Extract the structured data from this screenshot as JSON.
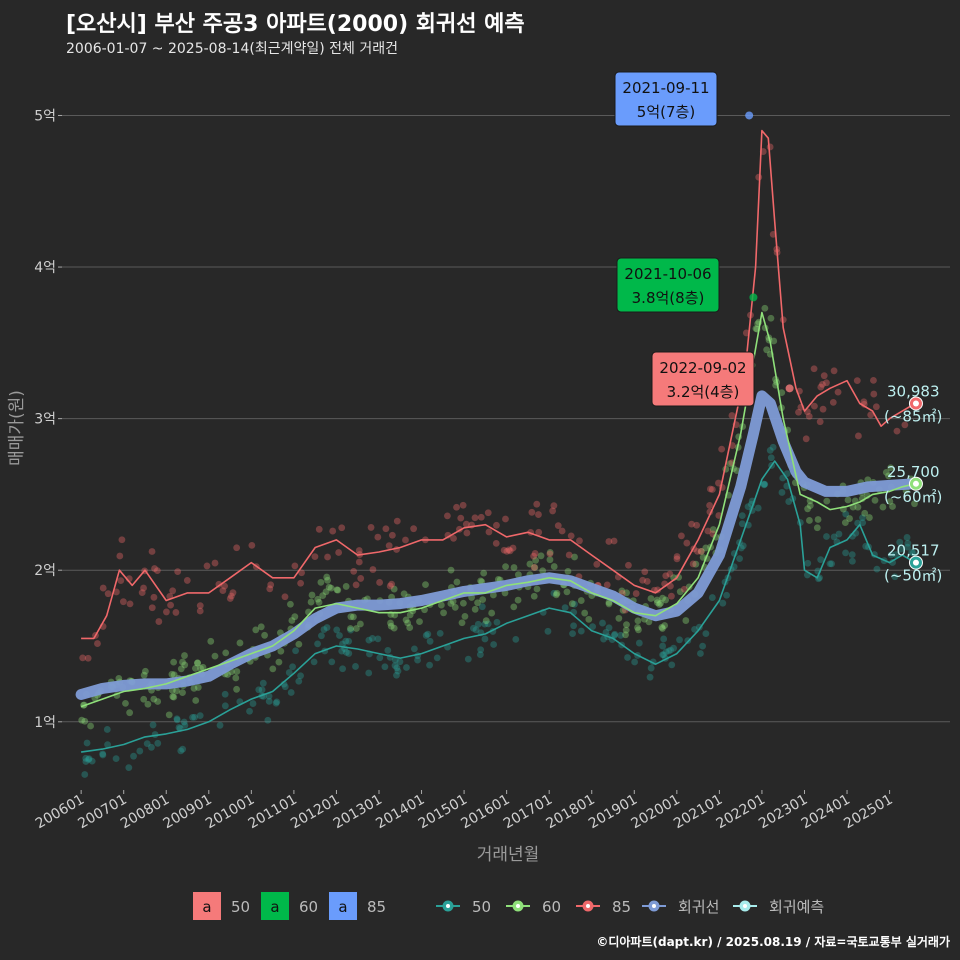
{
  "header": {
    "title": "[오산시] 부산 주공3 아파트(2000) 회귀선 예측",
    "subtitle": "2006-01-07 ~ 2025-08-14(최근계약일) 전체 거래건"
  },
  "credit": "©디아파트(dapt.kr) / 2025.08.19 / 자료=국토교통부 실거래가",
  "chart_data": {
    "type": "line",
    "xlabel": "거래년월",
    "ylabel": "매매가(원)",
    "x_range": [
      2006.0,
      2025.9
    ],
    "ylim": [
      0.55,
      5.3
    ],
    "y_ticks": [
      {
        "v": 1,
        "label": "1억"
      },
      {
        "v": 2,
        "label": "2억"
      },
      {
        "v": 3,
        "label": "3억"
      },
      {
        "v": 4,
        "label": "4억"
      },
      {
        "v": 5,
        "label": "5억"
      }
    ],
    "x_ticks": [
      {
        "v": 2006.0,
        "label": "200601"
      },
      {
        "v": 2007.0,
        "label": "200701"
      },
      {
        "v": 2008.0,
        "label": "200801"
      },
      {
        "v": 2009.0,
        "label": "200901"
      },
      {
        "v": 2010.0,
        "label": "201001"
      },
      {
        "v": 2011.0,
        "label": "201101"
      },
      {
        "v": 2012.0,
        "label": "201201"
      },
      {
        "v": 2013.0,
        "label": "201301"
      },
      {
        "v": 2014.0,
        "label": "201401"
      },
      {
        "v": 2015.0,
        "label": "201501"
      },
      {
        "v": 2016.0,
        "label": "201601"
      },
      {
        "v": 2017.0,
        "label": "201701"
      },
      {
        "v": 2018.0,
        "label": "201801"
      },
      {
        "v": 2019.0,
        "label": "201901"
      },
      {
        "v": 2020.0,
        "label": "202001"
      },
      {
        "v": 2021.0,
        "label": "202101"
      },
      {
        "v": 2022.0,
        "label": "202201"
      },
      {
        "v": 2023.0,
        "label": "202301"
      },
      {
        "v": 2024.0,
        "label": "202401"
      },
      {
        "v": 2025.0,
        "label": "202501"
      }
    ],
    "colors": {
      "s50": "#2aa198",
      "s60": "#8fe07a",
      "s85": "#f0686a",
      "regression": "#7e9bd6",
      "forecast": "#a8ecec"
    },
    "series": [
      {
        "name": "50",
        "color": "#2aa198",
        "points": [
          [
            2006.0,
            0.8
          ],
          [
            2006.5,
            0.82
          ],
          [
            2007.0,
            0.85
          ],
          [
            2007.5,
            0.9
          ],
          [
            2008.0,
            0.92
          ],
          [
            2008.5,
            0.95
          ],
          [
            2009.0,
            1.0
          ],
          [
            2009.5,
            1.08
          ],
          [
            2010.0,
            1.15
          ],
          [
            2010.5,
            1.2
          ],
          [
            2011.0,
            1.32
          ],
          [
            2011.5,
            1.45
          ],
          [
            2012.0,
            1.5
          ],
          [
            2012.5,
            1.48
          ],
          [
            2013.0,
            1.45
          ],
          [
            2013.5,
            1.42
          ],
          [
            2014.0,
            1.45
          ],
          [
            2014.5,
            1.5
          ],
          [
            2015.0,
            1.55
          ],
          [
            2015.5,
            1.58
          ],
          [
            2016.0,
            1.65
          ],
          [
            2016.5,
            1.7
          ],
          [
            2017.0,
            1.75
          ],
          [
            2017.5,
            1.72
          ],
          [
            2018.0,
            1.6
          ],
          [
            2018.5,
            1.55
          ],
          [
            2019.0,
            1.45
          ],
          [
            2019.5,
            1.38
          ],
          [
            2020.0,
            1.45
          ],
          [
            2020.5,
            1.6
          ],
          [
            2021.0,
            1.8
          ],
          [
            2021.5,
            2.2
          ],
          [
            2022.0,
            2.6
          ],
          [
            2022.3,
            2.72
          ],
          [
            2022.6,
            2.6
          ],
          [
            2022.9,
            2.3
          ],
          [
            2023.0,
            2.0
          ],
          [
            2023.3,
            1.95
          ],
          [
            2023.6,
            2.15
          ],
          [
            2024.0,
            2.2
          ],
          [
            2024.3,
            2.3
          ],
          [
            2024.6,
            2.1
          ],
          [
            2025.0,
            2.05
          ],
          [
            2025.3,
            2.1
          ],
          [
            2025.6,
            2.05
          ]
        ]
      },
      {
        "name": "60",
        "color": "#8fe07a",
        "points": [
          [
            2006.0,
            1.1
          ],
          [
            2006.5,
            1.15
          ],
          [
            2007.0,
            1.2
          ],
          [
            2007.5,
            1.22
          ],
          [
            2008.0,
            1.25
          ],
          [
            2008.5,
            1.3
          ],
          [
            2009.0,
            1.35
          ],
          [
            2009.5,
            1.4
          ],
          [
            2010.0,
            1.45
          ],
          [
            2010.5,
            1.5
          ],
          [
            2011.0,
            1.6
          ],
          [
            2011.5,
            1.75
          ],
          [
            2012.0,
            1.78
          ],
          [
            2012.5,
            1.75
          ],
          [
            2013.0,
            1.72
          ],
          [
            2013.5,
            1.72
          ],
          [
            2014.0,
            1.75
          ],
          [
            2014.5,
            1.8
          ],
          [
            2015.0,
            1.85
          ],
          [
            2015.5,
            1.85
          ],
          [
            2016.0,
            1.9
          ],
          [
            2016.5,
            1.92
          ],
          [
            2017.0,
            1.95
          ],
          [
            2017.5,
            1.93
          ],
          [
            2018.0,
            1.85
          ],
          [
            2018.5,
            1.8
          ],
          [
            2019.0,
            1.72
          ],
          [
            2019.5,
            1.7
          ],
          [
            2020.0,
            1.78
          ],
          [
            2020.5,
            1.95
          ],
          [
            2021.0,
            2.3
          ],
          [
            2021.5,
            2.9
          ],
          [
            2021.75,
            3.3
          ],
          [
            2022.0,
            3.7
          ],
          [
            2022.2,
            3.5
          ],
          [
            2022.5,
            3.0
          ],
          [
            2022.9,
            2.5
          ],
          [
            2023.3,
            2.45
          ],
          [
            2023.6,
            2.4
          ],
          [
            2024.0,
            2.42
          ],
          [
            2024.3,
            2.45
          ],
          [
            2024.6,
            2.5
          ],
          [
            2025.0,
            2.52
          ],
          [
            2025.3,
            2.55
          ],
          [
            2025.6,
            2.57
          ]
        ]
      },
      {
        "name": "85",
        "color": "#f0686a",
        "points": [
          [
            2006.0,
            1.55
          ],
          [
            2006.3,
            1.55
          ],
          [
            2006.6,
            1.7
          ],
          [
            2006.9,
            2.0
          ],
          [
            2007.2,
            1.9
          ],
          [
            2007.5,
            2.0
          ],
          [
            2008.0,
            1.8
          ],
          [
            2008.5,
            1.85
          ],
          [
            2009.0,
            1.85
          ],
          [
            2009.5,
            1.95
          ],
          [
            2010.0,
            2.05
          ],
          [
            2010.5,
            1.95
          ],
          [
            2011.0,
            1.95
          ],
          [
            2011.5,
            2.15
          ],
          [
            2012.0,
            2.2
          ],
          [
            2012.5,
            2.1
          ],
          [
            2013.0,
            2.12
          ],
          [
            2013.5,
            2.15
          ],
          [
            2014.0,
            2.2
          ],
          [
            2014.5,
            2.2
          ],
          [
            2015.0,
            2.28
          ],
          [
            2015.5,
            2.3
          ],
          [
            2016.0,
            2.22
          ],
          [
            2016.5,
            2.25
          ],
          [
            2017.0,
            2.2
          ],
          [
            2017.5,
            2.2
          ],
          [
            2018.0,
            2.1
          ],
          [
            2018.5,
            2.0
          ],
          [
            2019.0,
            1.9
          ],
          [
            2019.5,
            1.85
          ],
          [
            2020.0,
            1.95
          ],
          [
            2020.5,
            2.2
          ],
          [
            2021.0,
            2.5
          ],
          [
            2021.3,
            2.9
          ],
          [
            2021.6,
            3.3
          ],
          [
            2021.85,
            4.0
          ],
          [
            2022.0,
            4.9
          ],
          [
            2022.15,
            4.85
          ],
          [
            2022.3,
            4.3
          ],
          [
            2022.5,
            3.6
          ],
          [
            2022.8,
            3.2
          ],
          [
            2023.0,
            3.05
          ],
          [
            2023.3,
            3.15
          ],
          [
            2023.6,
            3.2
          ],
          [
            2024.0,
            3.25
          ],
          [
            2024.3,
            3.1
          ],
          [
            2024.6,
            3.05
          ],
          [
            2024.8,
            2.95
          ],
          [
            2025.0,
            3.0
          ],
          [
            2025.3,
            3.05
          ],
          [
            2025.6,
            3.1
          ]
        ]
      },
      {
        "name": "회귀선",
        "color": "#7e9bd6",
        "points": [
          [
            2006.0,
            1.18
          ],
          [
            2006.5,
            1.22
          ],
          [
            2007.0,
            1.24
          ],
          [
            2007.5,
            1.25
          ],
          [
            2008.0,
            1.25
          ],
          [
            2008.5,
            1.27
          ],
          [
            2009.0,
            1.3
          ],
          [
            2009.5,
            1.38
          ],
          [
            2010.0,
            1.45
          ],
          [
            2010.5,
            1.5
          ],
          [
            2011.0,
            1.58
          ],
          [
            2011.5,
            1.68
          ],
          [
            2012.0,
            1.75
          ],
          [
            2012.5,
            1.77
          ],
          [
            2013.0,
            1.77
          ],
          [
            2013.5,
            1.78
          ],
          [
            2014.0,
            1.8
          ],
          [
            2014.5,
            1.83
          ],
          [
            2015.0,
            1.86
          ],
          [
            2015.5,
            1.88
          ],
          [
            2016.0,
            1.9
          ],
          [
            2016.5,
            1.93
          ],
          [
            2017.0,
            1.95
          ],
          [
            2017.5,
            1.93
          ],
          [
            2018.0,
            1.88
          ],
          [
            2018.5,
            1.83
          ],
          [
            2019.0,
            1.75
          ],
          [
            2019.5,
            1.7
          ],
          [
            2020.0,
            1.73
          ],
          [
            2020.5,
            1.85
          ],
          [
            2021.0,
            2.1
          ],
          [
            2021.5,
            2.55
          ],
          [
            2021.8,
            2.9
          ],
          [
            2022.0,
            3.15
          ],
          [
            2022.2,
            3.1
          ],
          [
            2022.5,
            2.85
          ],
          [
            2022.8,
            2.65
          ],
          [
            2023.0,
            2.58
          ],
          [
            2023.5,
            2.52
          ],
          [
            2024.0,
            2.52
          ],
          [
            2024.5,
            2.55
          ],
          [
            2025.0,
            2.56
          ],
          [
            2025.6,
            2.57
          ]
        ]
      }
    ],
    "scatter": {
      "note": "many semi-transparent transaction dots per area group around each series line"
    },
    "annotations": [
      {
        "x": 2021.7,
        "y": 5.0,
        "date": "2021-09-11",
        "price": "5억(7층)",
        "color": "#6a9cfc"
      },
      {
        "x": 2021.8,
        "y": 3.8,
        "date": "2021-10-06",
        "price": "3.8억(8층)",
        "color": "#00b84a"
      },
      {
        "x": 2022.65,
        "y": 3.2,
        "date": "2022-09-02",
        "price": "3.2억(4층)",
        "color": "#f57a7a"
      }
    ],
    "end_labels": [
      {
        "y": 3.1,
        "value": "30,983",
        "area": "(~85㎡)",
        "color": "#f0686a"
      },
      {
        "y": 2.57,
        "value": "25,700",
        "area": "(~60㎡)",
        "color": "#8fe07a"
      },
      {
        "y": 2.05,
        "value": "20,517",
        "area": "(~50㎡)",
        "color": "#2aa198"
      }
    ],
    "legend": {
      "placement": "bottom",
      "fill_items": [
        {
          "label": "50",
          "color": "#f57a7a",
          "glyph": "a"
        },
        {
          "label": "60",
          "color": "#00b84a",
          "glyph": "a"
        },
        {
          "label": "85",
          "color": "#6a9cfc",
          "glyph": "a"
        }
      ],
      "line_items": [
        {
          "label": "50",
          "color": "#2aa198"
        },
        {
          "label": "60",
          "color": "#8fe07a"
        },
        {
          "label": "85",
          "color": "#f0686a"
        },
        {
          "label": "회귀선",
          "color": "#7e9bd6"
        },
        {
          "label": "회귀예측",
          "color": "#a8ecec"
        }
      ]
    }
  }
}
